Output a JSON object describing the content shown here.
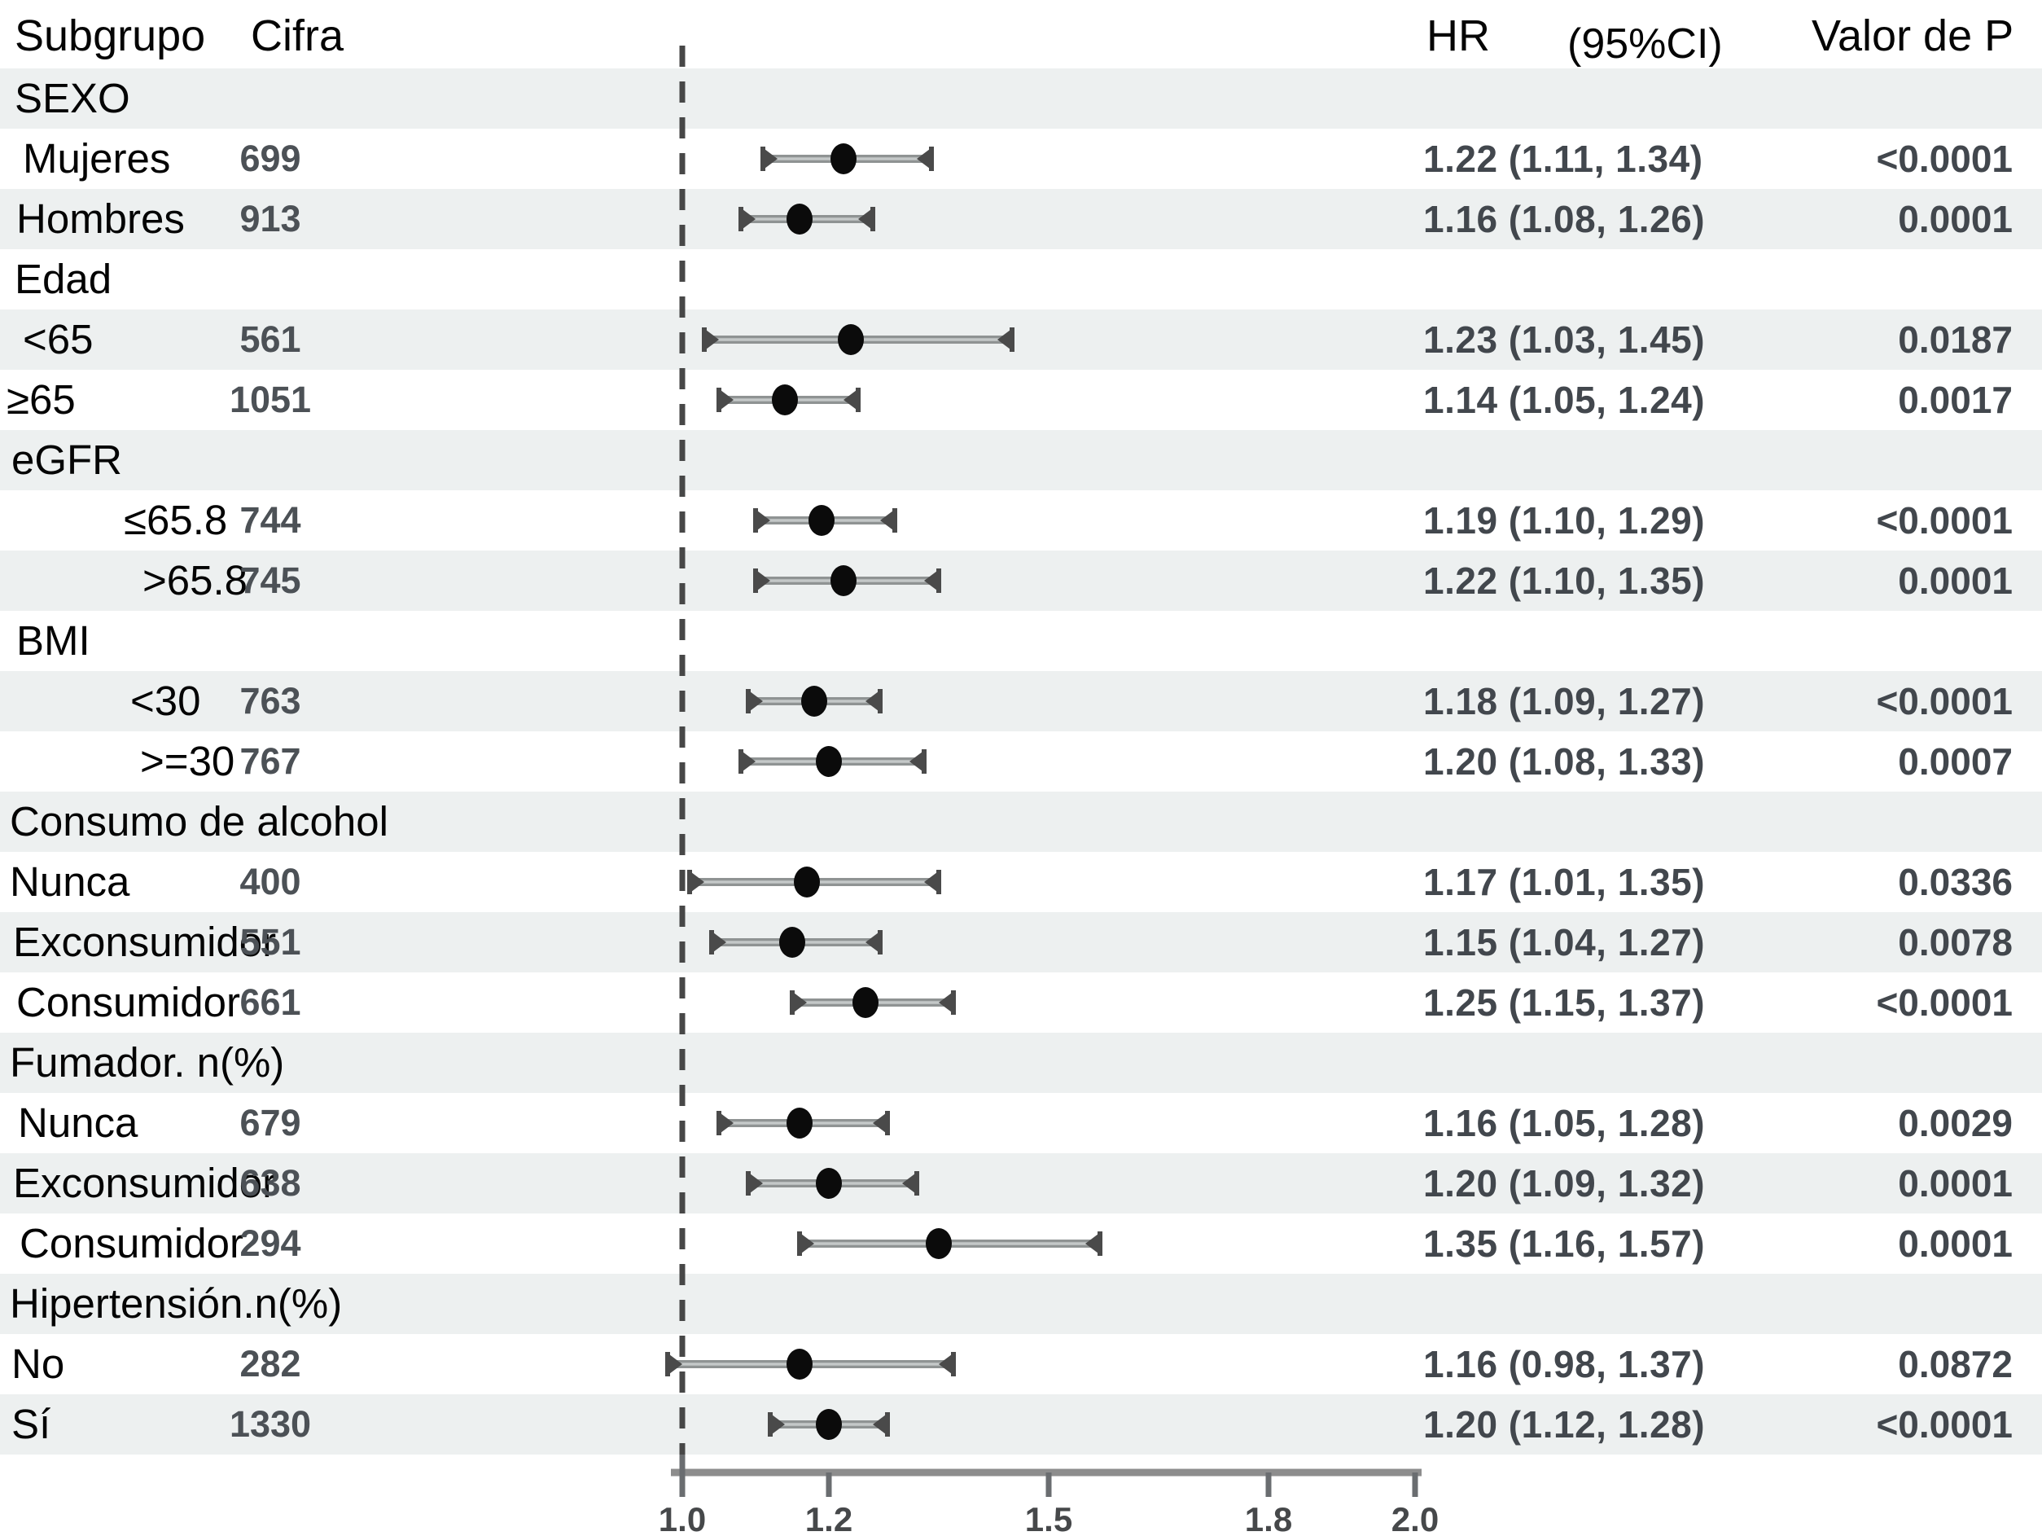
{
  "columns": {
    "subgroup": "Subgrupo",
    "n": "Cifra",
    "hr": "HR",
    "ci": "(95%CI)",
    "p": "Valor de P"
  },
  "axis": {
    "tick_labels": [
      "1.0",
      "1.2",
      "1.5",
      "1.8",
      "2.0"
    ],
    "tick_values": [
      1.0,
      1.2,
      1.5,
      1.8,
      2.0
    ],
    "reference_value": 1.0
  },
  "colors": {
    "band": "#edf0f0",
    "dot": "#0b0b0b",
    "bar": "#8f9393",
    "bar_core": "#c4c8c8",
    "cap": "#4a4a4a",
    "dashed_line": "#474747",
    "axis_line": "#8d8d8d",
    "tick": "#6a6d70",
    "label_text": "#040404",
    "value_text": "#42474d"
  },
  "chart_data": {
    "type": "forest",
    "x_ticks": [
      1.0,
      1.2,
      1.5,
      1.8,
      2.0
    ],
    "reference_line": 1.0,
    "rows": [
      {
        "label": "SEXO",
        "group": true,
        "indent": 18
      },
      {
        "label": "Mujeres",
        "indent": 28,
        "n": "699",
        "hr": 1.22,
        "ci": [
          1.11,
          1.34
        ],
        "hr_text": "1.22 (1.11, 1.34)",
        "p": "<0.0001"
      },
      {
        "label": "Hombres",
        "indent": 20,
        "n": "913",
        "hr": 1.16,
        "ci": [
          1.08,
          1.26
        ],
        "hr_text": "1.16 (1.08, 1.26)",
        "p": "0.0001"
      },
      {
        "label": "Edad",
        "group": true,
        "indent": 18
      },
      {
        "label": "<65",
        "indent": 28,
        "n": "561",
        "hr": 1.23,
        "ci": [
          1.03,
          1.45
        ],
        "hr_text": "1.23 (1.03, 1.45)",
        "p": "0.0187"
      },
      {
        "label": "≥65",
        "indent": 8,
        "n": "1051",
        "hr": 1.14,
        "ci": [
          1.05,
          1.24
        ],
        "hr_text": "1.14 (1.05, 1.24)",
        "p": "0.0017"
      },
      {
        "label": "eGFR",
        "group": true,
        "indent": 14
      },
      {
        "label": "≤65.8",
        "indent": 152,
        "n": "744",
        "hr": 1.19,
        "ci": [
          1.1,
          1.29
        ],
        "hr_text": "1.19 (1.10, 1.29)",
        "p": "<0.0001"
      },
      {
        "label": ">65.8",
        "indent": 175,
        "n": "745",
        "hr": 1.22,
        "ci": [
          1.1,
          1.35
        ],
        "hr_text": "1.22 (1.10, 1.35)",
        "p": "0.0001"
      },
      {
        "label": "BMI",
        "group": true,
        "indent": 20
      },
      {
        "label": "<30",
        "indent": 160,
        "n": "763",
        "hr": 1.18,
        "ci": [
          1.09,
          1.27
        ],
        "hr_text": "1.18 (1.09, 1.27)",
        "p": "<0.0001"
      },
      {
        "label": ">=30",
        "indent": 172,
        "n": "767",
        "hr": 1.2,
        "ci": [
          1.08,
          1.33
        ],
        "hr_text": "1.20 (1.08, 1.33)",
        "p": "0.0007"
      },
      {
        "label": "Consumo de alcohol",
        "group": true,
        "indent": 12
      },
      {
        "label": "Nunca",
        "indent": 12,
        "n": "400",
        "hr": 1.17,
        "ci": [
          1.01,
          1.35
        ],
        "hr_text": "1.17 (1.01, 1.35)",
        "p": "0.0336"
      },
      {
        "label": "Exconsumidor",
        "indent": 16,
        "n": "551",
        "hr": 1.15,
        "ci": [
          1.04,
          1.27
        ],
        "hr_text": "1.15 (1.04, 1.27)",
        "p": "0.0078"
      },
      {
        "label": "Consumidor",
        "indent": 20,
        "n": "661",
        "hr": 1.25,
        "ci": [
          1.15,
          1.37
        ],
        "hr_text": "1.25 (1.15, 1.37)",
        "p": "<0.0001"
      },
      {
        "label": "Fumador. n(%)",
        "group": true,
        "indent": 12
      },
      {
        "label": "Nunca",
        "indent": 22,
        "n": "679",
        "hr": 1.16,
        "ci": [
          1.05,
          1.28
        ],
        "hr_text": "1.16 (1.05, 1.28)",
        "p": "0.0029"
      },
      {
        "label": "Exconsumidor",
        "indent": 16,
        "n": "638",
        "hr": 1.2,
        "ci": [
          1.09,
          1.32
        ],
        "hr_text": "1.20 (1.09, 1.32)",
        "p": "0.0001"
      },
      {
        "label": "Consumidor",
        "indent": 24,
        "n": "294",
        "hr": 1.35,
        "ci": [
          1.16,
          1.57
        ],
        "hr_text": "1.35 (1.16, 1.57)",
        "p": "0.0001"
      },
      {
        "label": "Hipertensión.n(%)",
        "group": true,
        "indent": 12
      },
      {
        "label": "No",
        "indent": 14,
        "n": "282",
        "hr": 1.16,
        "ci": [
          0.98,
          1.37
        ],
        "hr_text": "1.16 (0.98, 1.37)",
        "p": "0.0872"
      },
      {
        "label": "Sí",
        "indent": 14,
        "n": "1330",
        "hr": 1.2,
        "ci": [
          1.12,
          1.28
        ],
        "hr_text": "1.20 (1.12, 1.28)",
        "p": "<0.0001"
      }
    ]
  }
}
